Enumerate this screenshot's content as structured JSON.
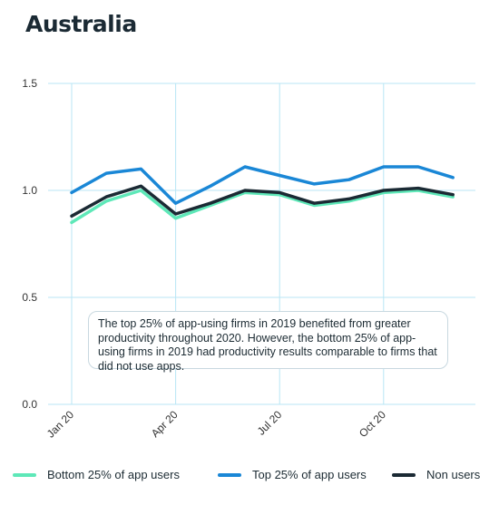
{
  "header": {
    "title": "Australia"
  },
  "annotation": {
    "text": "The top 25% of app-using firms in 2019 benefited from greater productivity throughout 2020. However, the bottom 25% of app-using firms in 2019 had productivity results comparable to firms that did not use apps."
  },
  "chart_data": {
    "type": "line",
    "title": "Australia",
    "xlabel": "",
    "ylabel": "",
    "x": [
      "Jan 20",
      "Feb 20",
      "Mar 20",
      "Apr 20",
      "May 20",
      "Jun 20",
      "Jul 20",
      "Aug 20",
      "Sep 20",
      "Oct 20",
      "Nov 20",
      "Dec 20"
    ],
    "x_tick_labels": [
      "Jan 20",
      "Apr 20",
      "Jul 20",
      "Oct 20"
    ],
    "y_ticks": [
      "0.0",
      "0.5",
      "1.0",
      "1.5"
    ],
    "ylim": [
      0,
      1.5
    ],
    "grid": true,
    "legend_position": "bottom",
    "series": [
      {
        "name": "Bottom 25% of app users",
        "color": "#5ee8b8",
        "values": [
          0.85,
          0.95,
          1.0,
          0.87,
          0.93,
          0.99,
          0.98,
          0.93,
          0.95,
          0.99,
          1.0,
          0.97
        ]
      },
      {
        "name": "Top 25% of app users",
        "color": "#1a87d6",
        "values": [
          0.99,
          1.08,
          1.1,
          0.94,
          1.02,
          1.11,
          1.07,
          1.03,
          1.05,
          1.11,
          1.11,
          1.06
        ]
      },
      {
        "name": "Non users",
        "color": "#1b2a34",
        "values": [
          0.88,
          0.97,
          1.02,
          0.89,
          0.94,
          1.0,
          0.99,
          0.94,
          0.96,
          1.0,
          1.01,
          0.98
        ]
      }
    ]
  }
}
